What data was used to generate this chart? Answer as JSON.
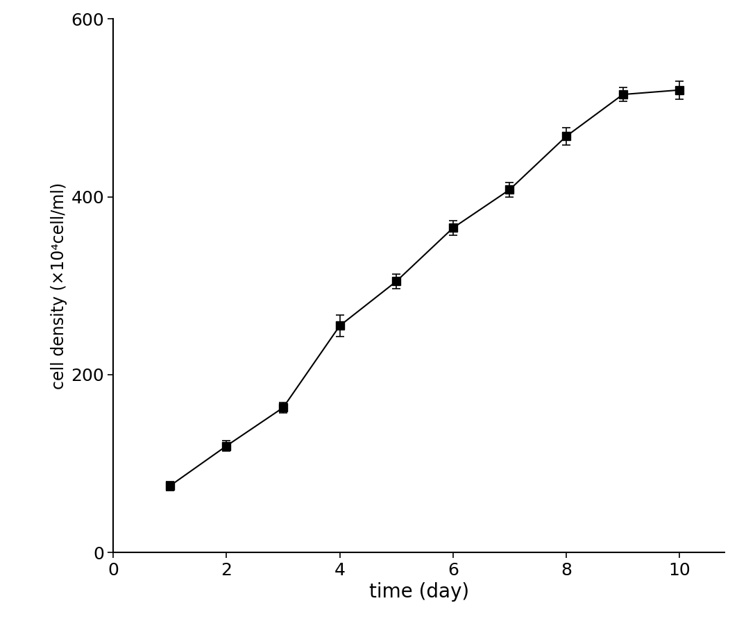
{
  "x": [
    1,
    2,
    3,
    4,
    5,
    6,
    7,
    8,
    9,
    10
  ],
  "y": [
    75,
    120,
    163,
    255,
    305,
    365,
    408,
    468,
    515,
    520
  ],
  "yerr": [
    5,
    6,
    6,
    12,
    8,
    8,
    8,
    10,
    8,
    10
  ],
  "xlabel": "time (day)",
  "ylabel": "cell density (×10⁴cell/ml)",
  "xlim": [
    0,
    10.8
  ],
  "ylim": [
    0,
    600
  ],
  "xticks": [
    0,
    2,
    4,
    6,
    8,
    10
  ],
  "yticks": [
    0,
    200,
    400,
    600
  ],
  "line_color": "#000000",
  "marker": "s",
  "marker_size": 9,
  "marker_color": "#000000",
  "line_width": 1.5,
  "capsize": 4,
  "elinewidth": 1.2,
  "xlabel_fontsize": 20,
  "ylabel_fontsize": 17,
  "tick_fontsize": 18,
  "background_color": "#ffffff"
}
